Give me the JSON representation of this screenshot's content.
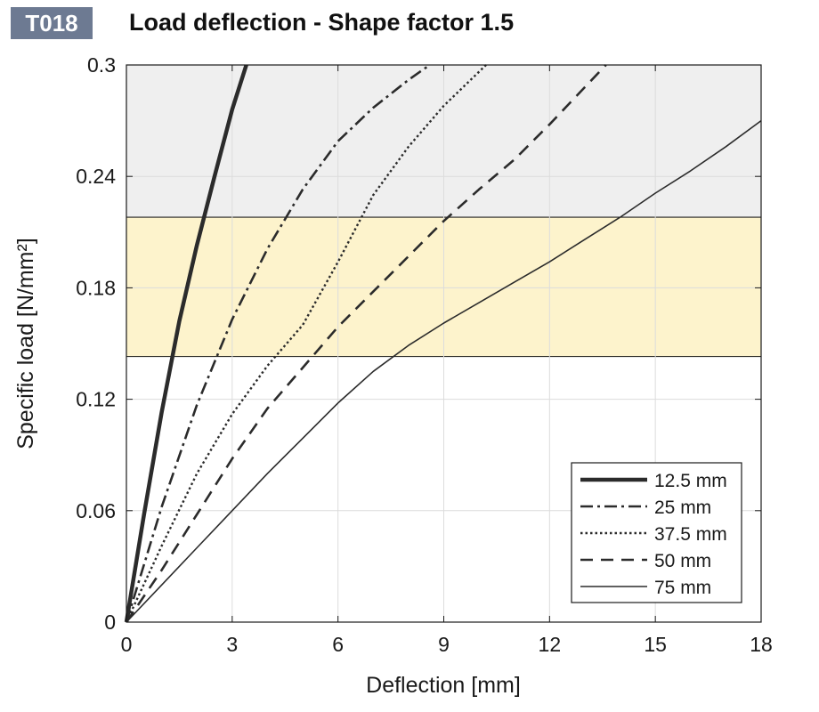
{
  "header": {
    "badge": "T018",
    "title": "Load deflection - Shape factor 1.5"
  },
  "colors": {
    "upper_band": "#efefef",
    "lower_band": "#fdf3cc",
    "grid": "#dcdcdc",
    "curve": "#2b2b2b"
  },
  "chart_data": {
    "type": "line",
    "title": "Load deflection - Shape factor 1.5",
    "xlabel": "Deflection  [mm]",
    "ylabel": "Specific load [N/mm²]",
    "xlim": [
      0,
      18
    ],
    "ylim": [
      0,
      0.3
    ],
    "xticks": [
      0,
      3,
      6,
      9,
      12,
      15,
      18
    ],
    "yticks": [
      0,
      0.06,
      0.12,
      0.18,
      0.24,
      0.3
    ],
    "xtick_labels": [
      "0",
      "3",
      "6",
      "9",
      "12",
      "15",
      "18"
    ],
    "ytick_labels": [
      "0",
      "0.06",
      "0.12",
      "0.18",
      "0.24",
      "0.3"
    ],
    "grid": true,
    "legend_position": "bottom-right",
    "bands": [
      {
        "y_from": 0.218,
        "y_to": 0.3,
        "color": "#efefef"
      },
      {
        "y_from": 0.143,
        "y_to": 0.218,
        "color": "#fdf3cc"
      }
    ],
    "series": [
      {
        "name": "12.5 mm",
        "style": "solid-thick",
        "x": [
          0,
          0.5,
          1.0,
          1.5,
          2.0,
          2.5,
          3.0,
          3.4
        ],
        "y": [
          0,
          0.058,
          0.113,
          0.162,
          0.203,
          0.24,
          0.276,
          0.3
        ]
      },
      {
        "name": "25 mm",
        "style": "dash-dot",
        "x": [
          0,
          1.0,
          2.0,
          3.0,
          4.0,
          5.0,
          6.0,
          7.0,
          8.0,
          8.6
        ],
        "y": [
          0,
          0.062,
          0.117,
          0.163,
          0.201,
          0.233,
          0.259,
          0.277,
          0.292,
          0.3
        ]
      },
      {
        "name": "37.5 mm",
        "style": "dotted",
        "x": [
          0,
          1.0,
          2.0,
          3.0,
          4.0,
          5.0,
          6.0,
          7.0,
          8.0,
          9.0,
          10.2
        ],
        "y": [
          0,
          0.041,
          0.08,
          0.112,
          0.138,
          0.16,
          0.194,
          0.23,
          0.256,
          0.278,
          0.3
        ]
      },
      {
        "name": "50 mm",
        "style": "dashed",
        "x": [
          0,
          1.0,
          2.0,
          3.0,
          4.0,
          5.0,
          6.0,
          7.0,
          8.0,
          9.0,
          10.0,
          11.0,
          12.0,
          13.0,
          13.6
        ],
        "y": [
          0,
          0.028,
          0.058,
          0.088,
          0.115,
          0.137,
          0.159,
          0.178,
          0.197,
          0.216,
          0.233,
          0.249,
          0.268,
          0.288,
          0.3
        ]
      },
      {
        "name": "75 mm",
        "style": "solid-thin",
        "x": [
          0,
          1.0,
          2.0,
          3.0,
          4.0,
          5.0,
          6.0,
          7.0,
          8.0,
          9.0,
          10.0,
          11.0,
          12.0,
          13.0,
          14.0,
          15.0,
          16.0,
          17.0,
          18.0
        ],
        "y": [
          0,
          0.02,
          0.04,
          0.06,
          0.08,
          0.099,
          0.118,
          0.135,
          0.149,
          0.161,
          0.172,
          0.183,
          0.194,
          0.206,
          0.218,
          0.231,
          0.243,
          0.256,
          0.27
        ]
      }
    ]
  }
}
